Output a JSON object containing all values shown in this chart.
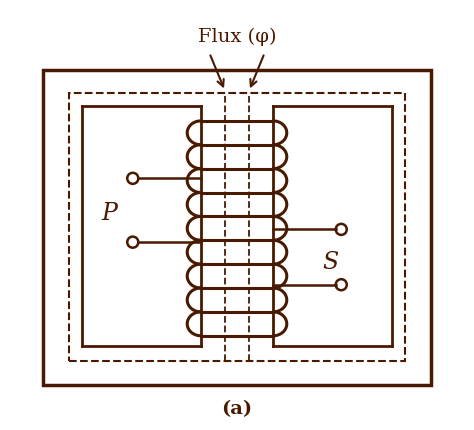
{
  "color": "#4A1A00",
  "bg_color": "#FFFFFF",
  "title": "Flux (φ)",
  "label_a": "(a)",
  "label_P": "P",
  "label_S": "S",
  "fig_width": 4.74,
  "fig_height": 4.31,
  "dpi": 100
}
